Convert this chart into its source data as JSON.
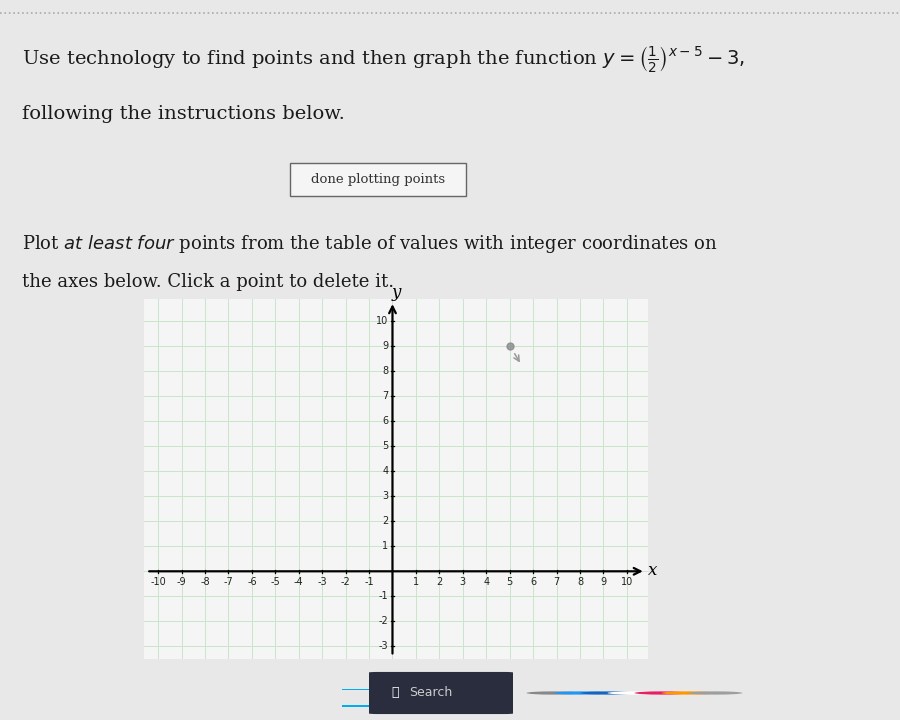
{
  "title_text": "Use technology to find points and then graph the function $y = \\left(\\frac{1}{2}\\right)^{x-5} - 3,$",
  "title_line2": "following the instructions below.",
  "button_text": "done plotting points",
  "instr_text": "Plot $\\it{at\\ least\\ four}$ points from the table of values with integer coordinates on",
  "instr_line2": "the axes below. Click a point to delete it.",
  "x_min": -10,
  "x_max": 10,
  "y_min": -3,
  "y_max": 10,
  "x_ticks": [
    -10,
    -9,
    -8,
    -7,
    -6,
    -5,
    -4,
    -3,
    -2,
    -1,
    1,
    2,
    3,
    4,
    5,
    6,
    7,
    8,
    9,
    10
  ],
  "y_ticks": [
    -3,
    -2,
    -1,
    1,
    2,
    3,
    4,
    5,
    6,
    7,
    8,
    9,
    10
  ],
  "grid_color": "#c8e6c9",
  "background_color": "#e8e8e8",
  "plot_bg_color": "#f5f5f5",
  "text_color": "#1a1a1a",
  "cursor_point_x": 5,
  "cursor_point_y": 9,
  "point_color": "#888888",
  "taskbar_color": "#1c2033",
  "fig_width": 9.0,
  "fig_height": 7.2
}
